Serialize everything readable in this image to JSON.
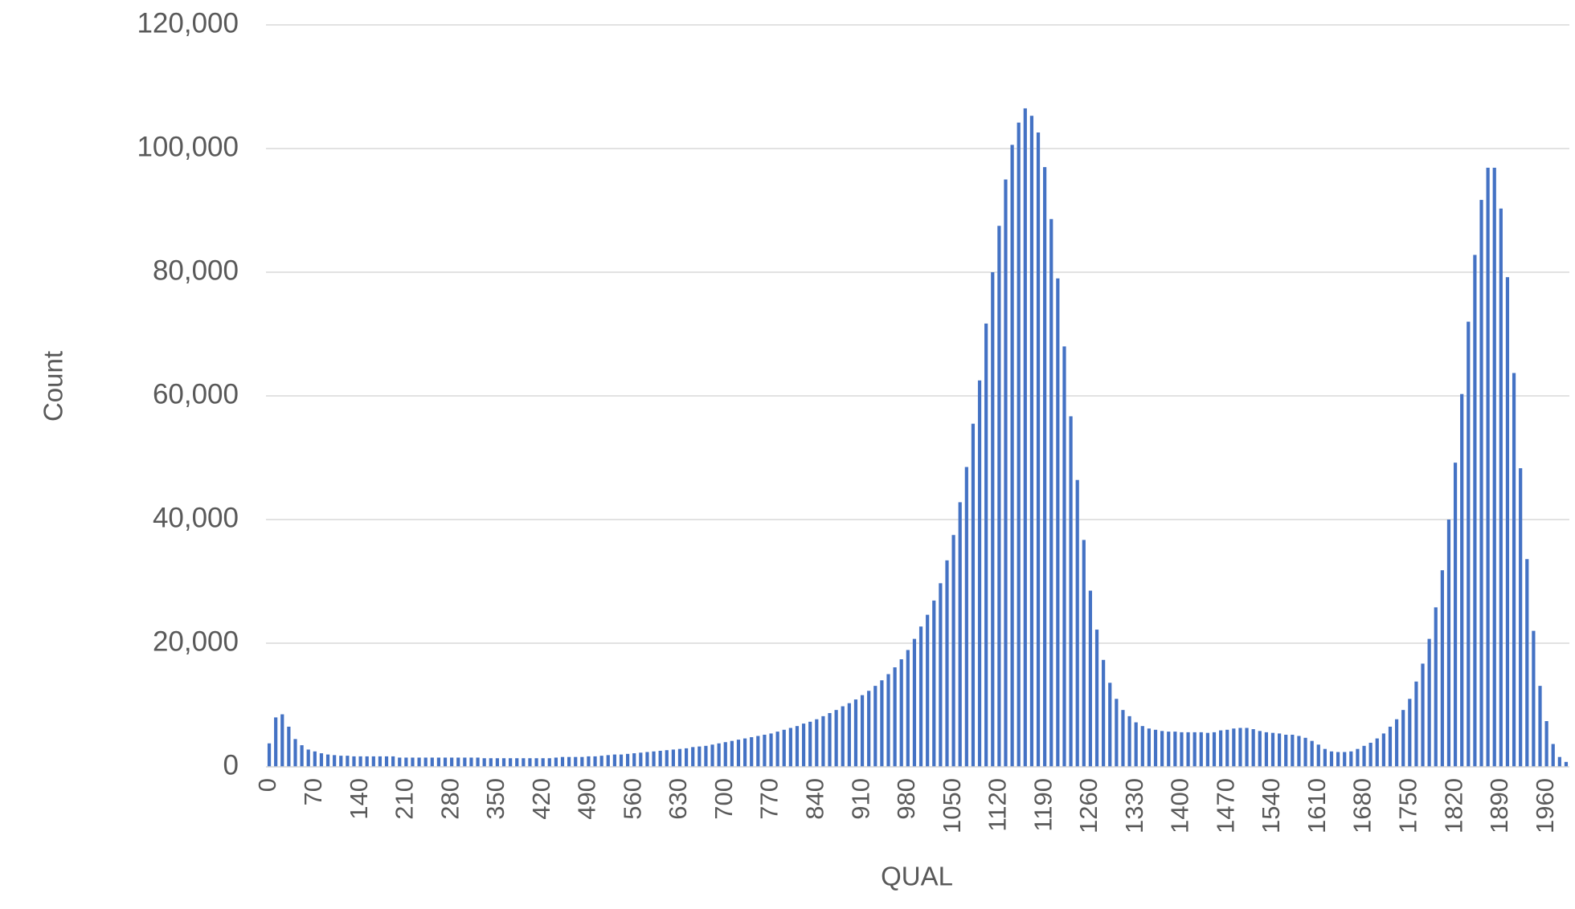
{
  "chart_data": {
    "type": "bar",
    "x_label": "QUAL",
    "y_label": "Count",
    "color": "#4472c4",
    "grid": true,
    "ylim": [
      0,
      120000
    ],
    "yticks": [
      0,
      {
        "value": 20000,
        "label": "20,000"
      },
      {
        "value": 40000,
        "label": "40,000"
      },
      {
        "value": 60000,
        "label": "60,000"
      },
      {
        "value": 80000,
        "label": "80,000"
      },
      {
        "value": 100000,
        "label": "100,000"
      },
      {
        "value": 120000,
        "label": "120,000"
      }
    ],
    "categories": [
      0,
      null,
      null,
      null,
      null,
      null,
      null,
      70,
      null,
      null,
      null,
      null,
      null,
      null,
      140,
      null,
      null,
      null,
      null,
      null,
      null,
      210,
      null,
      null,
      null,
      null,
      null,
      null,
      280,
      null,
      null,
      null,
      null,
      null,
      null,
      350,
      null,
      null,
      null,
      null,
      null,
      null,
      420,
      null,
      null,
      null,
      null,
      null,
      null,
      490,
      null,
      null,
      null,
      null,
      null,
      null,
      560,
      null,
      null,
      null,
      null,
      null,
      null,
      630,
      null,
      null,
      null,
      null,
      null,
      null,
      700,
      null,
      null,
      null,
      null,
      null,
      null,
      770,
      null,
      null,
      null,
      null,
      null,
      null,
      840,
      null,
      null,
      null,
      null,
      null,
      null,
      910,
      null,
      null,
      null,
      null,
      null,
      null,
      980,
      null,
      null,
      null,
      null,
      null,
      null,
      1050,
      null,
      null,
      null,
      null,
      null,
      null,
      1120,
      null,
      null,
      null,
      null,
      null,
      null,
      1190,
      null,
      null,
      null,
      null,
      null,
      null,
      1260,
      null,
      null,
      null,
      null,
      null,
      null,
      1330,
      null,
      null,
      null,
      null,
      null,
      null,
      1400,
      null,
      null,
      null,
      null,
      null,
      null,
      1470,
      null,
      null,
      null,
      null,
      null,
      null,
      1540,
      null,
      null,
      null,
      null,
      null,
      null,
      1610,
      null,
      null,
      null,
      null,
      null,
      null,
      1680,
      null,
      null,
      null,
      null,
      null,
      null,
      1750,
      null,
      null,
      null,
      null,
      null,
      null,
      1820,
      null,
      null,
      null,
      null,
      null,
      null,
      1890,
      null,
      null,
      null,
      null,
      null,
      null,
      1960,
      null,
      null,
      null
    ],
    "values": [
      3800,
      8000,
      8500,
      6500,
      4500,
      3500,
      2800,
      2500,
      2200,
      2000,
      1900,
      1800,
      1800,
      1700,
      1700,
      1700,
      1700,
      1700,
      1700,
      1700,
      1500,
      1500,
      1500,
      1500,
      1500,
      1500,
      1500,
      1500,
      1500,
      1500,
      1500,
      1500,
      1500,
      1400,
      1400,
      1400,
      1400,
      1400,
      1400,
      1400,
      1400,
      1400,
      1400,
      1400,
      1500,
      1600,
      1600,
      1600,
      1600,
      1700,
      1700,
      1800,
      1900,
      2000,
      2000,
      2100,
      2200,
      2300,
      2400,
      2500,
      2600,
      2700,
      2800,
      2900,
      3000,
      3200,
      3300,
      3400,
      3600,
      3800,
      4000,
      4200,
      4400,
      4600,
      4800,
      5000,
      5200,
      5400,
      5700,
      6000,
      6300,
      6600,
      7000,
      7300,
      7700,
      8200,
      8700,
      9200,
      9800,
      10300,
      10900,
      11600,
      12300,
      13100,
      14000,
      15000,
      16100,
      17400,
      18900,
      20700,
      22700,
      24600,
      26900,
      29700,
      33400,
      37500,
      42800,
      48500,
      55500,
      62500,
      71700,
      80000,
      87500,
      95000,
      100600,
      104200,
      106500,
      105300,
      102600,
      97000,
      88600,
      79000,
      68000,
      56700,
      46400,
      36700,
      28500,
      22200,
      17300,
      13600,
      11000,
      9200,
      8200,
      7200,
      6600,
      6200,
      6000,
      5800,
      5700,
      5700,
      5600,
      5600,
      5600,
      5600,
      5500,
      5600,
      5900,
      6000,
      6200,
      6300,
      6300,
      6100,
      5800,
      5600,
      5500,
      5400,
      5200,
      5200,
      5000,
      4700,
      4200,
      3600,
      2900,
      2500,
      2400,
      2400,
      2500,
      2900,
      3400,
      3900,
      4600,
      5400,
      6500,
      7700,
      9200,
      11000,
      13800,
      16700,
      20700,
      25800,
      31800,
      40000,
      49200,
      60300,
      72000,
      82800,
      91700,
      96900,
      96900,
      90300,
      79200,
      63700,
      48300,
      33600,
      22000,
      13100,
      7400,
      3700,
      1600,
      800
    ]
  }
}
